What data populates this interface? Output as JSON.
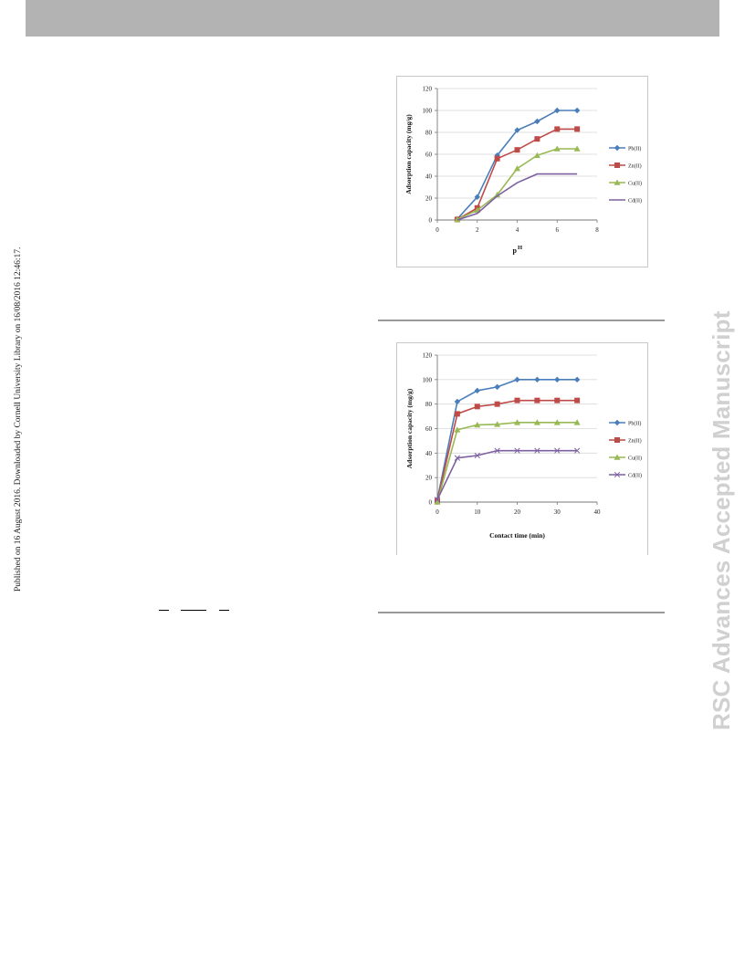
{
  "header": {
    "bar_color": "#b3b3b3"
  },
  "published_note": "Published on 16 August 2016. Downloaded by Cornell University Library on 16/08/2016 12:46:17.",
  "watermark": "RSC Advances Accepted Manuscript",
  "chart_data": [
    {
      "type": "line",
      "title": "",
      "xlabel": "pH",
      "ylabel": "Adsorption capacity (mg/g)",
      "xlim": [
        0,
        8
      ],
      "ylim": [
        0,
        120
      ],
      "x_ticks": [
        0,
        2,
        4,
        6,
        8
      ],
      "y_ticks": [
        0,
        20,
        40,
        60,
        80,
        100,
        120
      ],
      "grid": "horizontal",
      "legend": "right",
      "x": [
        1,
        2,
        3,
        4,
        5,
        6,
        7
      ],
      "series": [
        {
          "name": "Pb(II)",
          "color": "#4a7ebb",
          "marker": "diamond",
          "values": [
            1,
            21,
            59,
            82,
            90,
            100,
            100
          ]
        },
        {
          "name": "Zn(II)",
          "color": "#be4b48",
          "marker": "square",
          "values": [
            0.5,
            11,
            56,
            64,
            74,
            83,
            83
          ]
        },
        {
          "name": "Cu(II)",
          "color": "#98b954",
          "marker": "triangle",
          "values": [
            0.5,
            9,
            23,
            47,
            59,
            65,
            65
          ]
        },
        {
          "name": "Cd(II)",
          "color": "#7d60a0",
          "marker": "none",
          "values": [
            0,
            6,
            22,
            34,
            42,
            42,
            42
          ]
        }
      ]
    },
    {
      "type": "line",
      "title": "",
      "xlabel": "Contact time (min)",
      "ylabel": "Adsorption capacity (mg/g)",
      "xlim": [
        0,
        40
      ],
      "ylim": [
        0,
        120
      ],
      "x_ticks": [
        0,
        10,
        20,
        30,
        40
      ],
      "y_ticks": [
        0,
        20,
        40,
        60,
        80,
        100,
        120
      ],
      "grid": "horizontal",
      "legend": "right",
      "x": [
        0,
        5,
        10,
        15,
        20,
        25,
        30,
        35
      ],
      "series": [
        {
          "name": "Pb(II)",
          "color": "#4a7ebb",
          "marker": "diamond",
          "values": [
            2,
            82,
            91,
            94,
            100,
            100,
            100,
            100
          ]
        },
        {
          "name": "Zn(II)",
          "color": "#be4b48",
          "marker": "square",
          "values": [
            1,
            72,
            78,
            80,
            83,
            83,
            83,
            83
          ]
        },
        {
          "name": "Cu(II)",
          "color": "#98b954",
          "marker": "triangle",
          "values": [
            0,
            59,
            63,
            63.5,
            65,
            65,
            65,
            65
          ]
        },
        {
          "name": "Cd(II)",
          "color": "#7d60a0",
          "marker": "x",
          "values": [
            2,
            36,
            38,
            42,
            42,
            42,
            42,
            42
          ]
        }
      ]
    }
  ]
}
